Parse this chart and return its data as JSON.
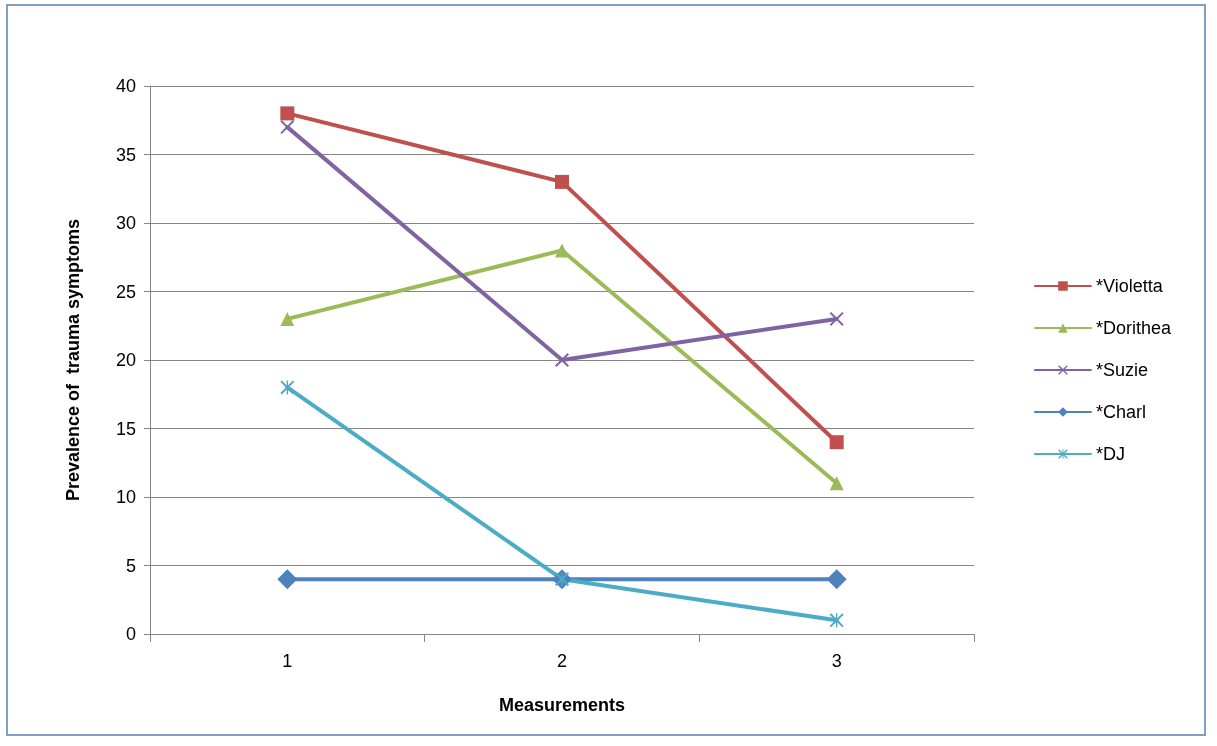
{
  "chart_data": {
    "type": "line",
    "xlabel": "Measurements",
    "ylabel": "Prevalence of  trauma symptoms",
    "categories": [
      "1",
      "2",
      "3"
    ],
    "series": [
      {
        "name": "*Violetta",
        "color": "#c0504d",
        "marker": "square",
        "values": [
          38,
          33,
          14
        ]
      },
      {
        "name": "*Dorithea",
        "color": "#9bbb59",
        "marker": "triangle",
        "values": [
          23,
          28,
          11
        ]
      },
      {
        "name": "*Suzie",
        "color": "#8064a2",
        "marker": "cross",
        "values": [
          37,
          20,
          23
        ]
      },
      {
        "name": "*Charl",
        "color": "#4f81bd",
        "marker": "diamond",
        "values": [
          4,
          4,
          4
        ]
      },
      {
        "name": "*DJ",
        "color": "#4bacc6",
        "marker": "star",
        "values": [
          18,
          4,
          1
        ]
      }
    ],
    "ylim": [
      0,
      40
    ],
    "yticks": [
      0,
      5,
      10,
      15,
      20,
      25,
      30,
      35,
      40
    ],
    "grid": "y",
    "legend": "right"
  }
}
